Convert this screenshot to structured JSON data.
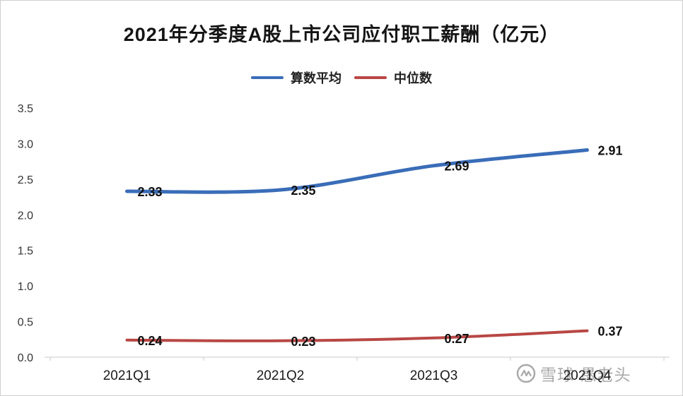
{
  "chart_data": {
    "type": "line",
    "title": "2021年分季度A股上市公司应付职工薪酬（亿元）",
    "categories": [
      "2021Q1",
      "2021Q2",
      "2021Q3",
      "2021Q4"
    ],
    "series": [
      {
        "name": "算数平均",
        "color": "#3a6db8",
        "stroke_width": 5,
        "values": [
          2.33,
          2.35,
          2.69,
          2.91
        ]
      },
      {
        "name": "中位数",
        "color": "#b84745",
        "stroke_width": 4,
        "values": [
          0.24,
          0.23,
          0.27,
          0.37
        ]
      }
    ],
    "xlabel": "",
    "ylabel": "",
    "ylim": [
      0,
      3.5
    ],
    "ytick_step": 0.5,
    "yticks": [
      "0.0",
      "0.5",
      "1.0",
      "1.5",
      "2.0",
      "2.5",
      "3.0",
      "3.5"
    ],
    "grid": false,
    "legend_position": "top",
    "data_labels": true
  },
  "watermark": {
    "text": "雪球·愚老头",
    "icon": "xueqiu-logo",
    "color": "#a8a8a8"
  }
}
